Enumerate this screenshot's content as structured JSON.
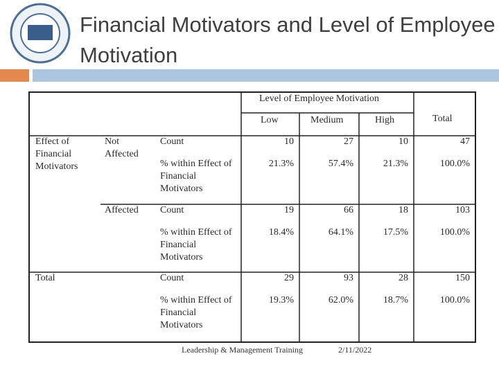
{
  "header": {
    "title": "Financial Motivators and Level of Employee Motivation"
  },
  "table": {
    "column_group": "Level of Employee Motivation",
    "columns": [
      "Low",
      "Medium",
      "High",
      "Total"
    ],
    "row_group": "Effect of Financial Motivators",
    "rows": [
      {
        "label": "Not Affected",
        "count_label": "Count",
        "counts": [
          10,
          27,
          10,
          47
        ],
        "percent_label": "% within Effect of Financial Motivators",
        "percents": [
          "21.3%",
          "57.4%",
          "21.3%",
          "100.0%"
        ]
      },
      {
        "label": "Affected",
        "count_label": "Count",
        "counts": [
          19,
          66,
          18,
          103
        ],
        "percent_label": "% within Effect of Financial Motivators",
        "percents": [
          "18.4%",
          "64.1%",
          "17.5%",
          "100.0%"
        ]
      },
      {
        "label": "Total",
        "count_label": "Count",
        "counts": [
          29,
          93,
          28,
          150
        ],
        "percent_label": "% within Effect of Financial Motivators",
        "percents": [
          "19.3%",
          "62.0%",
          "18.7%",
          "100.0%"
        ]
      }
    ]
  },
  "footer": {
    "text": "Leadership & Management Training",
    "date": "2/11/2022"
  }
}
